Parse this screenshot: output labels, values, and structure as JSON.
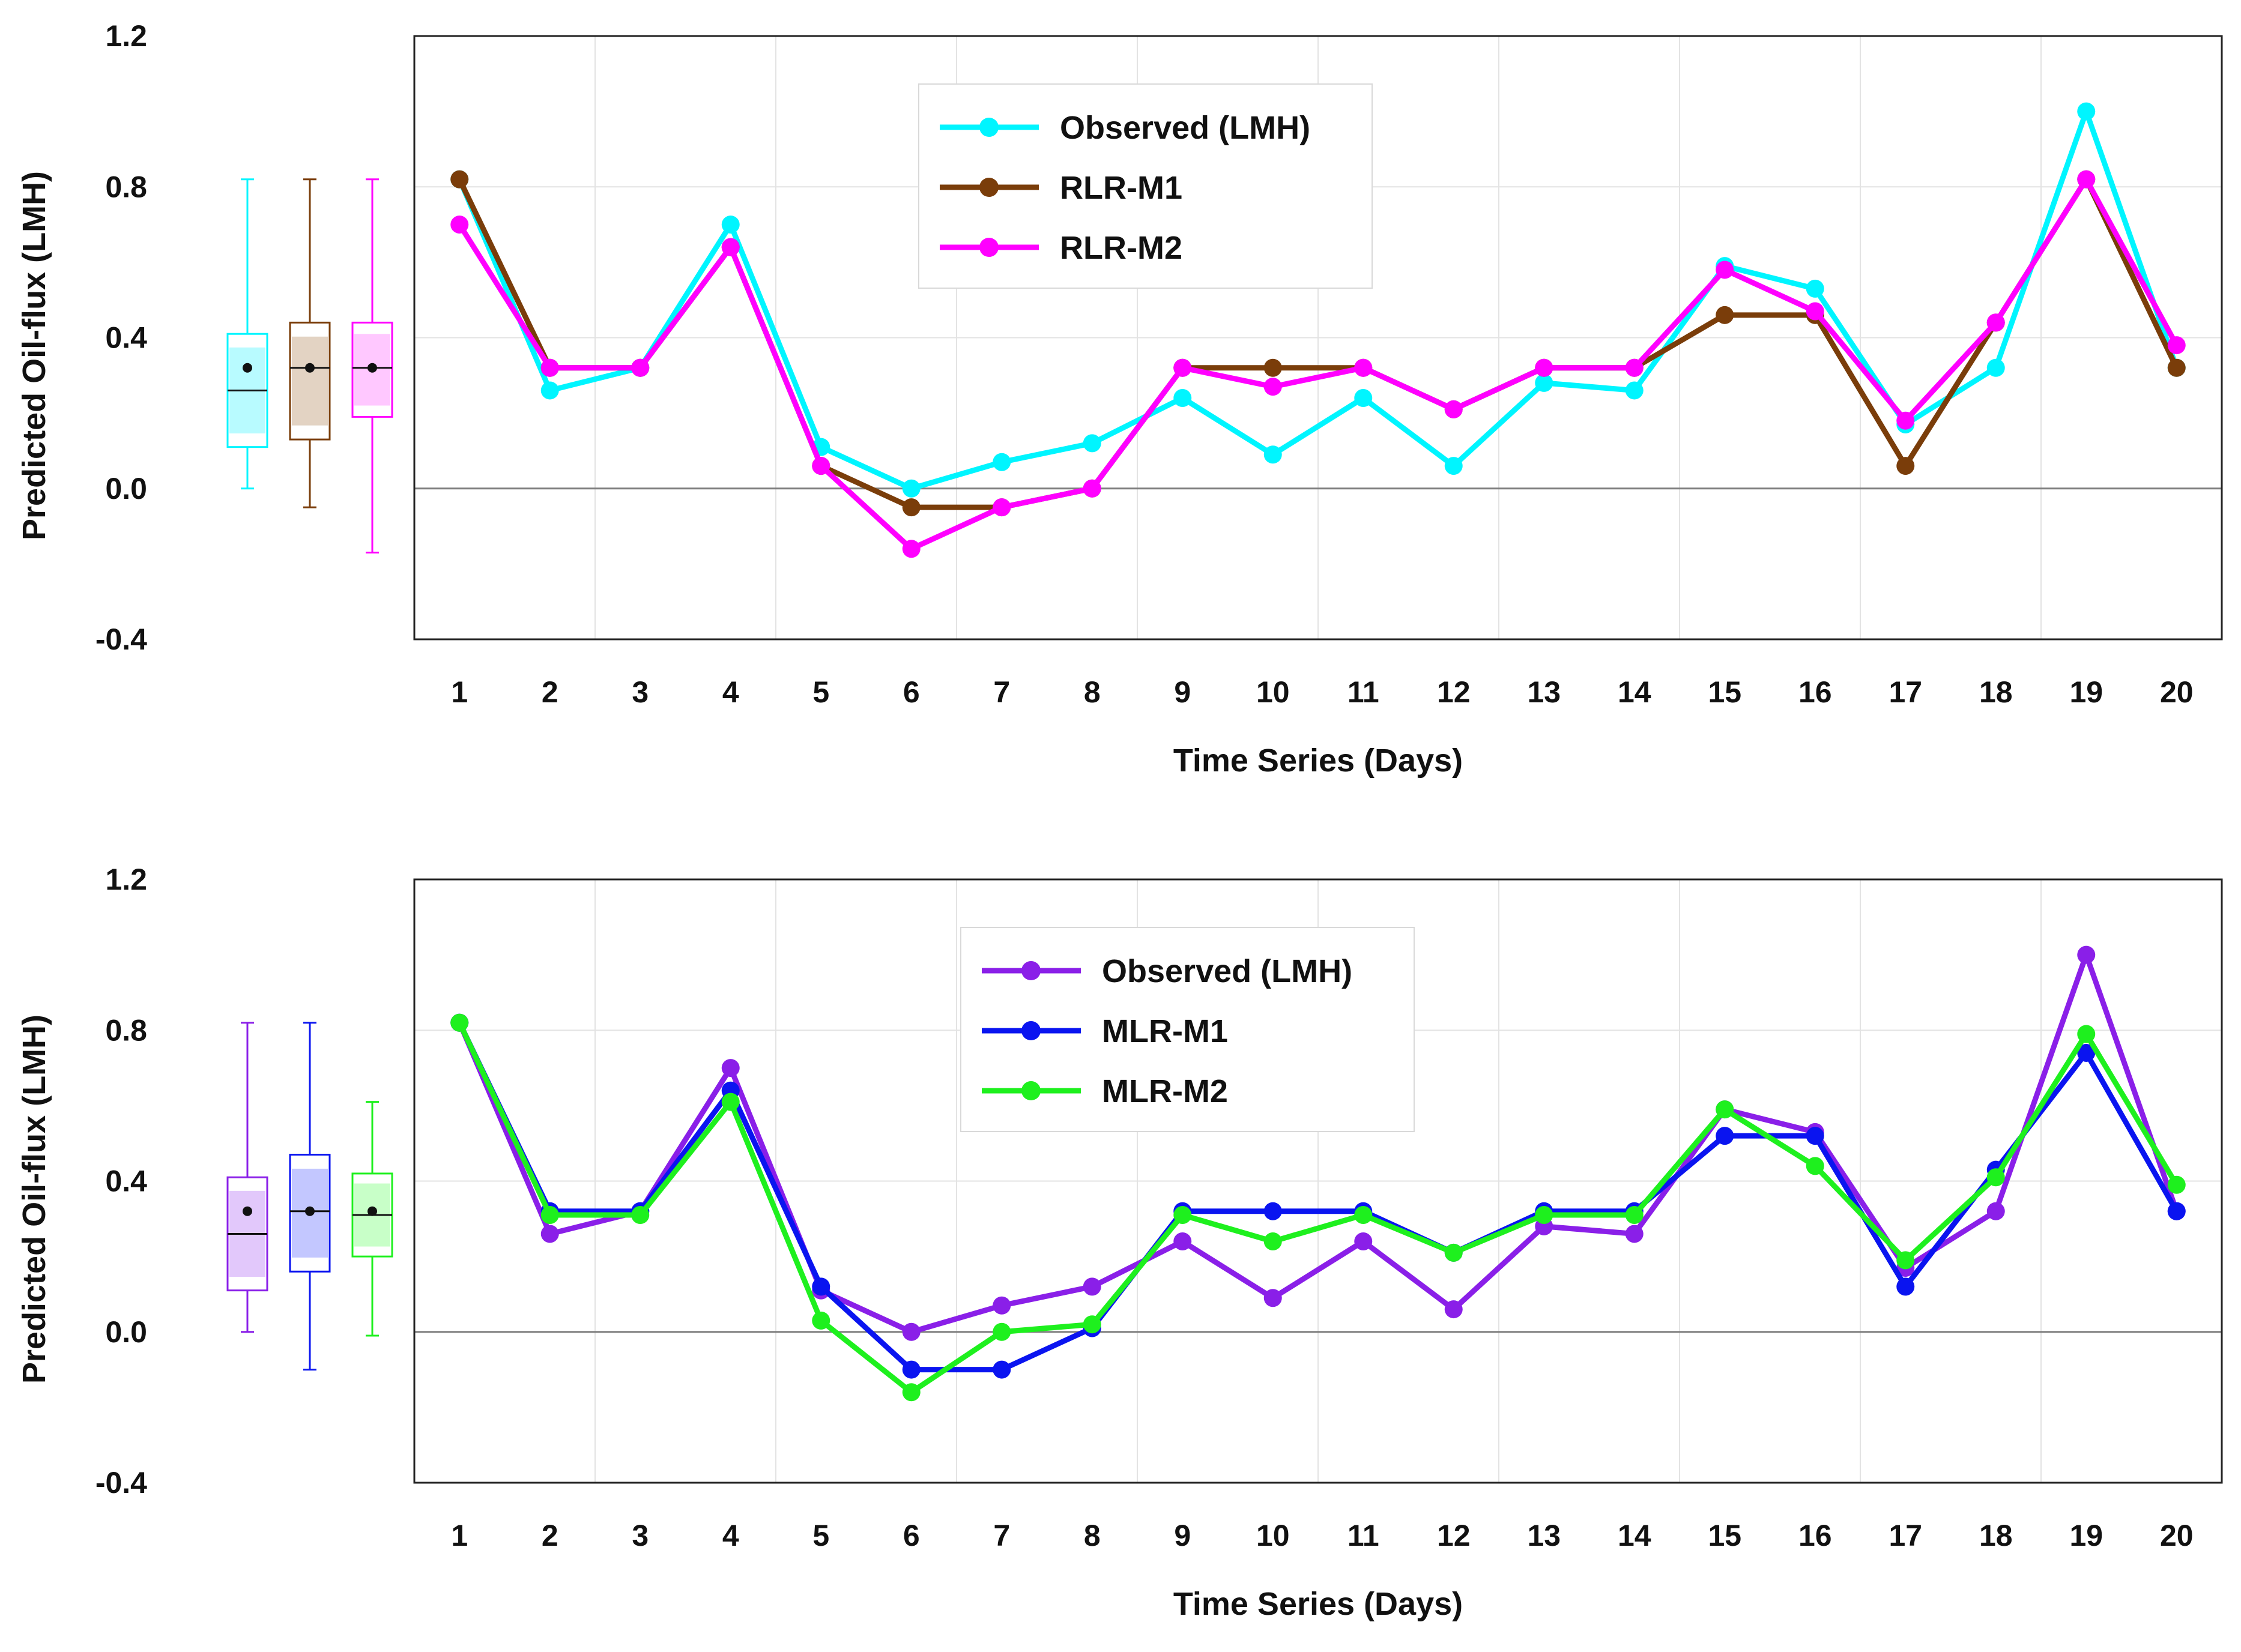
{
  "chart_data": [
    {
      "type": "line",
      "title": "",
      "xlabel": "Time Series (Days)",
      "ylabel": "Predicted Oil-flux (LMH)",
      "ylim": [
        -0.4,
        1.2
      ],
      "yticks": [
        1.2,
        0.8,
        0.4,
        0.0,
        -0.4
      ],
      "ytick_labels": [
        "1.2",
        "0.8",
        "0.4",
        "0.0",
        "-0.4"
      ],
      "categories": [
        "1",
        "2",
        "3",
        "4",
        "5",
        "6",
        "7",
        "8",
        "9",
        "10",
        "11",
        "12",
        "13",
        "14",
        "15",
        "16",
        "17",
        "18",
        "19",
        "20"
      ],
      "grid": true,
      "legend_position": "top-center",
      "series": [
        {
          "name": "Observed (LMH)",
          "color": "#00f5ff",
          "values": [
            0.82,
            0.26,
            0.32,
            0.7,
            0.11,
            0.0,
            0.07,
            0.12,
            0.24,
            0.09,
            0.24,
            0.06,
            0.28,
            0.26,
            0.59,
            0.53,
            0.17,
            0.32,
            1.0,
            0.32
          ]
        },
        {
          "name": "RLR-M1",
          "color": "#7a3d0a",
          "values": [
            0.82,
            0.32,
            0.32,
            0.64,
            0.06,
            -0.05,
            -0.05,
            0.0,
            0.32,
            0.32,
            0.32,
            0.21,
            0.32,
            0.32,
            0.46,
            0.46,
            0.06,
            0.44,
            0.82,
            0.32
          ]
        },
        {
          "name": "RLR-M2",
          "color": "#ff00ff",
          "values": [
            0.7,
            0.32,
            0.32,
            0.64,
            0.06,
            -0.16,
            -0.05,
            0.0,
            0.32,
            0.27,
            0.32,
            0.21,
            0.32,
            0.32,
            0.58,
            0.47,
            0.18,
            0.44,
            0.82,
            0.38
          ]
        }
      ],
      "boxplots": [
        {
          "name": "Observed (LMH)",
          "color": "#00f5ff",
          "fill": "#b8fbff",
          "min": 0.0,
          "q1": 0.11,
          "median": 0.26,
          "mean": 0.32,
          "q3": 0.41,
          "max": 0.82
        },
        {
          "name": "RLR-M1",
          "color": "#7a3d0a",
          "fill": "#e3d3c3",
          "min": -0.05,
          "q1": 0.13,
          "median": 0.32,
          "mean": 0.32,
          "q3": 0.44,
          "max": 0.82
        },
        {
          "name": "RLR-M2",
          "color": "#ff00ff",
          "fill": "#ffc8ff",
          "min": -0.17,
          "q1": 0.19,
          "median": 0.32,
          "mean": 0.32,
          "q3": 0.44,
          "max": 0.82
        }
      ]
    },
    {
      "type": "line",
      "title": "",
      "xlabel": "Time Series (Days)",
      "ylabel": "Predicted Oil-flux (LMH)",
      "ylim": [
        -0.4,
        1.2
      ],
      "yticks": [
        1.2,
        0.8,
        0.4,
        0.0,
        -0.4
      ],
      "ytick_labels": [
        "1.2",
        "0.8",
        "0.4",
        "0.0",
        "-0.4"
      ],
      "categories": [
        "1",
        "2",
        "3",
        "4",
        "5",
        "6",
        "7",
        "8",
        "9",
        "10",
        "11",
        "12",
        "13",
        "14",
        "15",
        "16",
        "17",
        "18",
        "19",
        "20"
      ],
      "grid": true,
      "legend_position": "top-center",
      "series": [
        {
          "name": "Observed (LMH)",
          "color": "#8a1fe8",
          "values": [
            0.82,
            0.26,
            0.32,
            0.7,
            0.11,
            0.0,
            0.07,
            0.12,
            0.24,
            0.09,
            0.24,
            0.06,
            0.28,
            0.26,
            0.59,
            0.53,
            0.17,
            0.32,
            1.0,
            0.32
          ]
        },
        {
          "name": "MLR-M1",
          "color": "#0a14f0",
          "values": [
            0.82,
            0.32,
            0.32,
            0.64,
            0.12,
            -0.1,
            -0.1,
            0.01,
            0.32,
            0.32,
            0.32,
            0.21,
            0.32,
            0.32,
            0.52,
            0.52,
            0.12,
            0.43,
            0.74,
            0.32
          ]
        },
        {
          "name": "MLR-M2",
          "color": "#1ef01e",
          "values": [
            0.82,
            0.31,
            0.31,
            0.61,
            0.03,
            -0.16,
            0.0,
            0.02,
            0.31,
            0.24,
            0.31,
            0.21,
            0.31,
            0.31,
            0.59,
            0.44,
            0.19,
            0.41,
            0.79,
            0.39
          ]
        }
      ],
      "boxplots": [
        {
          "name": "Observed (LMH)",
          "color": "#8a1fe8",
          "fill": "#e2c8fb",
          "min": 0.0,
          "q1": 0.11,
          "median": 0.26,
          "mean": 0.32,
          "q3": 0.41,
          "max": 0.82
        },
        {
          "name": "MLR-M1",
          "color": "#0a14f0",
          "fill": "#c3c7ff",
          "min": -0.1,
          "q1": 0.16,
          "median": 0.32,
          "mean": 0.32,
          "q3": 0.47,
          "max": 0.82
        },
        {
          "name": "MLR-M2",
          "color": "#1ef01e",
          "fill": "#c8ffc8",
          "min": -0.01,
          "q1": 0.2,
          "median": 0.31,
          "mean": 0.32,
          "q3": 0.42,
          "max": 0.61
        }
      ]
    }
  ]
}
